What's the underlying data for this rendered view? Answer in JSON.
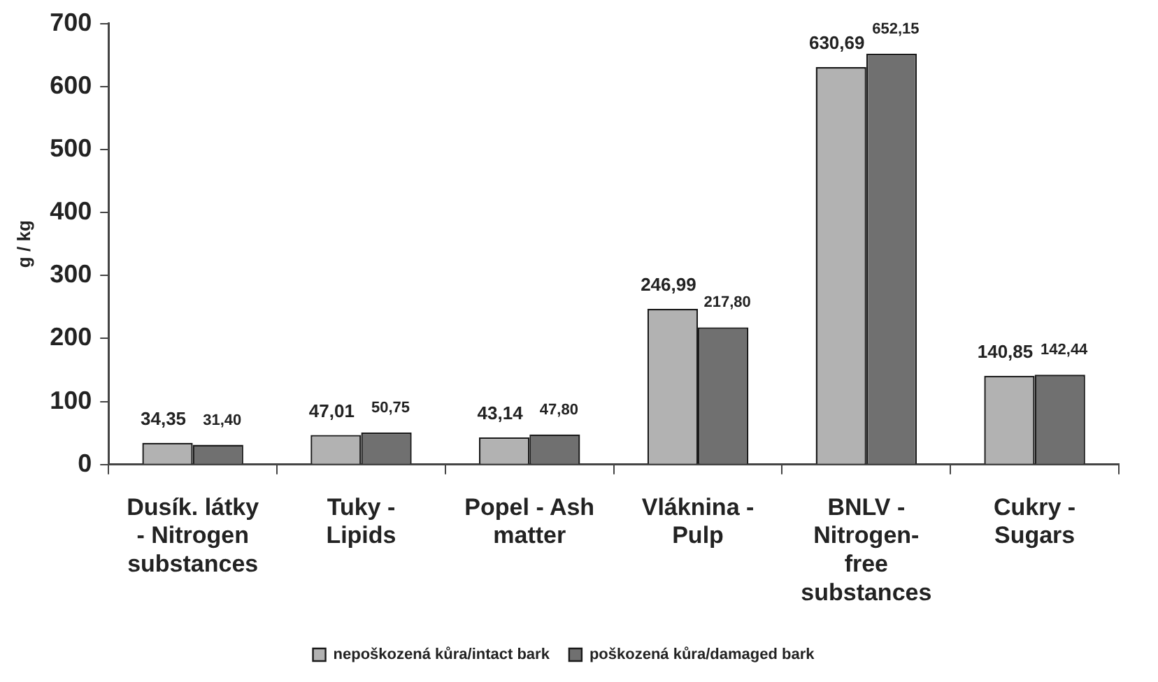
{
  "chart_data": {
    "type": "bar",
    "ylabel": "g / kg",
    "categories": [
      "Dusík. látky - Nitrogen substances",
      "Tuky - Lipids",
      "Popel - Ash matter",
      "Vláknina - Pulp",
      "BNLV - Nitrogen-free substances",
      "Cukry - Sugars"
    ],
    "series": [
      {
        "name": "nepoškozená kůra/intact bark",
        "color": "#b2b2b2",
        "values": [
          34.35,
          47.01,
          43.14,
          246.99,
          630.69,
          140.85
        ],
        "value_labels": [
          "34,35",
          "47,01",
          "43,14",
          "246,99",
          "630,69",
          "140,85"
        ]
      },
      {
        "name": "poškozená kůra/damaged bark",
        "color": "#707070",
        "values": [
          31.4,
          50.75,
          47.8,
          217.8,
          652.15,
          142.44
        ],
        "value_labels": [
          "31,40",
          "50,75",
          "47,80",
          "217,80",
          "652,15",
          "142,44"
        ]
      }
    ],
    "ylim": [
      0,
      700
    ],
    "yticks": [
      0,
      100,
      200,
      300,
      400,
      500,
      600,
      700
    ],
    "grid": false,
    "legend": "bottom"
  }
}
